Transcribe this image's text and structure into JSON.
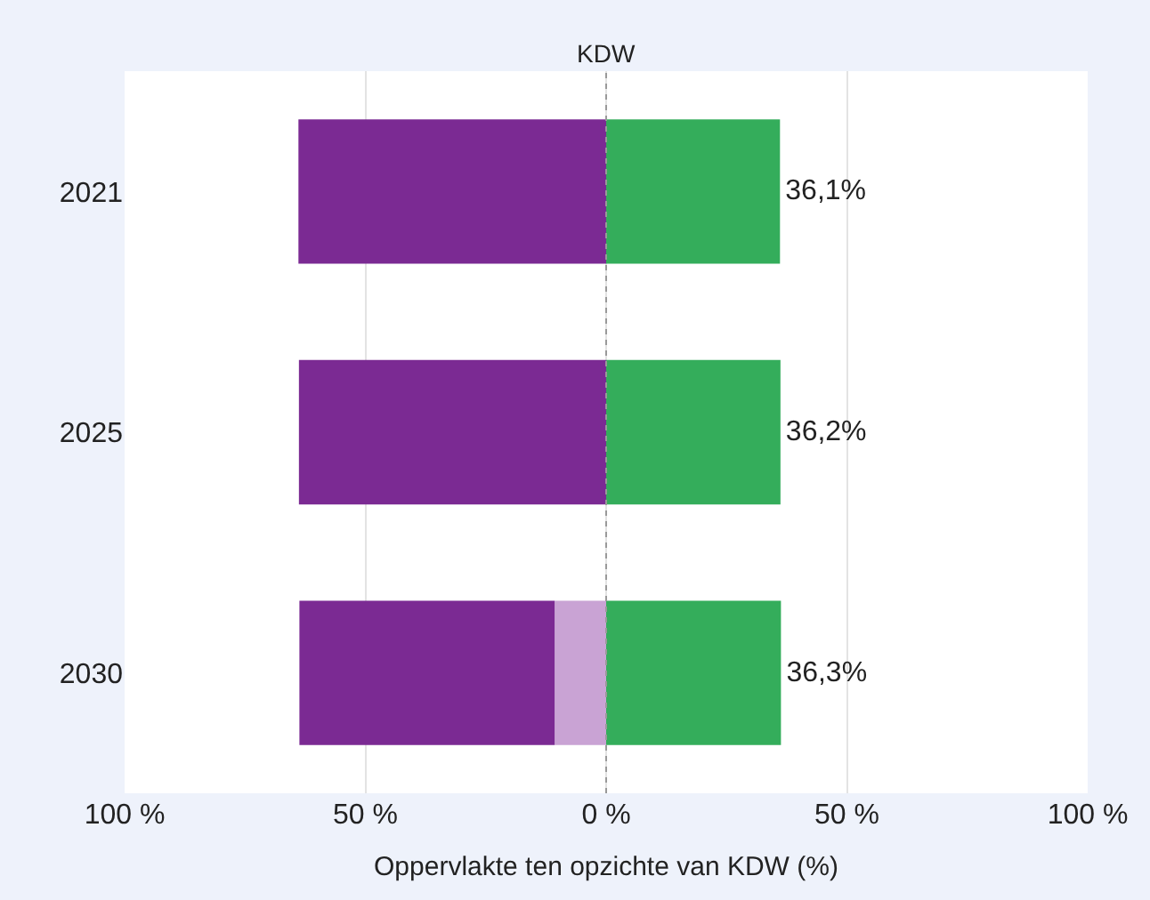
{
  "chart_data": {
    "type": "bar",
    "orientation": "horizontal",
    "stacked": true,
    "xlabel": "Oppervlakte ten opzichte van KDW (%)",
    "categories": [
      "2021",
      "2025",
      "2030"
    ],
    "series": [
      {
        "color": "#c9a3d4",
        "values": [
          null,
          null,
          -10.7
        ]
      },
      {
        "color": "#7b2a93",
        "values": [
          -63.9,
          -63.8,
          -53.0
        ]
      },
      {
        "color": "#34ad5b",
        "values": [
          36.1,
          36.2,
          36.3
        ],
        "value_labels": [
          "36,1%",
          "36,2%",
          "36,3%"
        ]
      }
    ],
    "xlim": [
      -100,
      100
    ],
    "xticks": [
      {
        "value": -100,
        "label": "100 %"
      },
      {
        "value": -50,
        "label": "50 %"
      },
      {
        "value": 0,
        "label": "0 %"
      },
      {
        "value": 50,
        "label": "50 %"
      },
      {
        "value": 100,
        "label": "100 %"
      }
    ],
    "ref_lines": [
      {
        "axis": "x",
        "value": 0,
        "label": "KDW",
        "color": "#999999",
        "line_style": "dotted"
      }
    ],
    "grid": "x"
  }
}
